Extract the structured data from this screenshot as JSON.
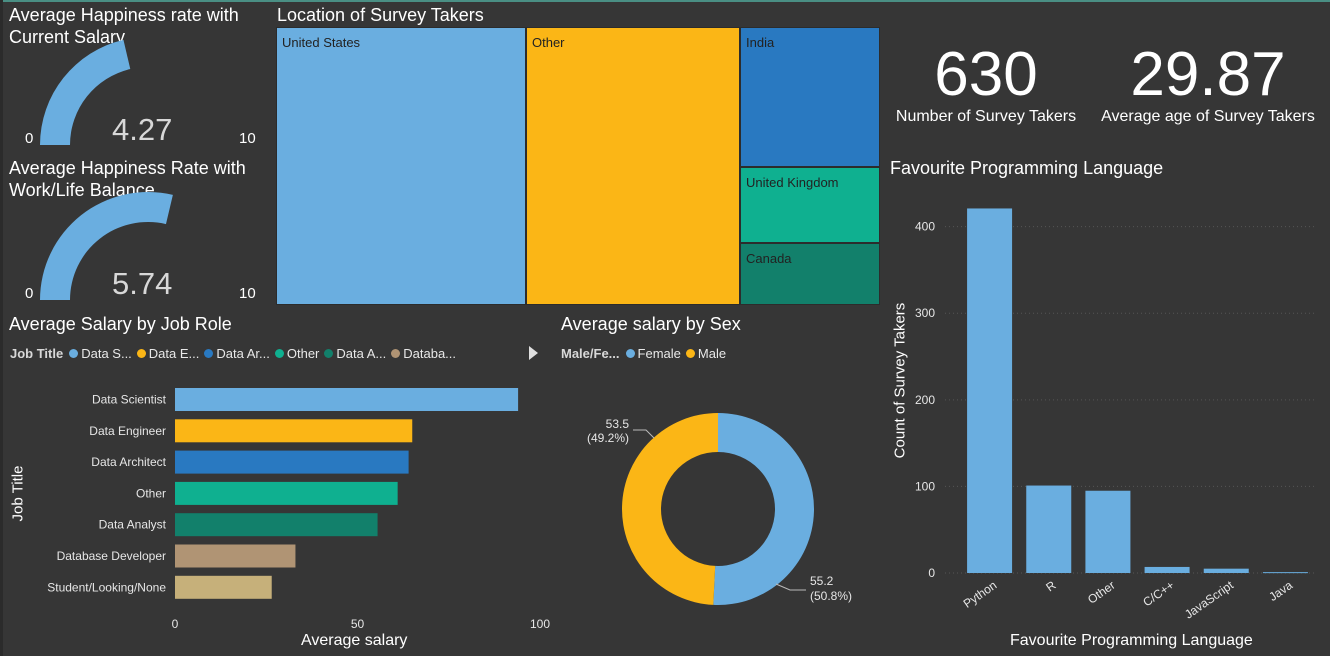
{
  "gauges": [
    {
      "title_line1": "Average Happiness rate with",
      "title_line2": "Current Salary",
      "value": 4.27,
      "value_label": "4.27",
      "min_label": "0",
      "max_label": "10",
      "min": 0,
      "max": 10,
      "color": "#6aaee0"
    },
    {
      "title_line1": "Average Happiness Rate with",
      "title_line2": "Work/Life Balance",
      "value": 5.74,
      "value_label": "5.74",
      "min_label": "0",
      "max_label": "10",
      "min": 0,
      "max": 10,
      "color": "#6aaee0"
    }
  ],
  "treemap": {
    "title": "Location of Survey Takers",
    "cells": [
      {
        "label": "United States",
        "color": "#6aaee0"
      },
      {
        "label": "Other",
        "color": "#fbb616"
      },
      {
        "label": "India",
        "color": "#2979c1"
      },
      {
        "label": "United Kingdom",
        "color": "#0fb090"
      },
      {
        "label": "Canada",
        "color": "#12806b"
      }
    ]
  },
  "kpis": [
    {
      "value": "630",
      "label": "Number of Survey Takers"
    },
    {
      "value": "29.87",
      "label": "Average age of Survey Takers"
    }
  ],
  "chart_data": [
    {
      "type": "bar",
      "orientation": "horizontal",
      "title": "Average Salary by Job Role",
      "legend_title": "Job Title",
      "legend_items": [
        "Data S...",
        "Data E...",
        "Data Ar...",
        "Other",
        "Data A...",
        "Databa..."
      ],
      "categories": [
        "Data Scientist",
        "Data Engineer",
        "Data Architect",
        "Other",
        "Data Analyst",
        "Database Developer",
        "Student/Looking/None"
      ],
      "values": [
        94,
        65,
        64,
        61,
        55.5,
        33,
        26.5
      ],
      "colors": [
        "#6aaee0",
        "#fbb616",
        "#2979c1",
        "#0fb090",
        "#12806b",
        "#b09474",
        "#c6b07a"
      ],
      "xlabel": "Average salary",
      "ylabel": "Job Title",
      "xlim": [
        0,
        100
      ],
      "xticks": [
        "0",
        "50",
        "100"
      ]
    },
    {
      "type": "pie",
      "donut": true,
      "title": "Average salary by Sex",
      "legend_title": "Male/Fe...",
      "categories": [
        "Female",
        "Male"
      ],
      "values": [
        55.2,
        53.5
      ],
      "data_labels": [
        [
          "55.2",
          "(50.8%)"
        ],
        [
          "53.5",
          "(49.2%)"
        ]
      ],
      "colors": [
        "#6aaee0",
        "#fbb616"
      ]
    },
    {
      "type": "bar",
      "title": "Favourite Programming Language",
      "categories": [
        "Python",
        "R",
        "Other",
        "C/C++",
        "JavaScript",
        "Java"
      ],
      "values": [
        421,
        101,
        95,
        7,
        5,
        1
      ],
      "color": "#6aaee0",
      "xlabel": "Favourite Programming Language",
      "ylabel": "Count of Survey Takers",
      "ylim": [
        0,
        440
      ],
      "yticks": [
        "0",
        "100",
        "200",
        "300",
        "400"
      ]
    }
  ]
}
